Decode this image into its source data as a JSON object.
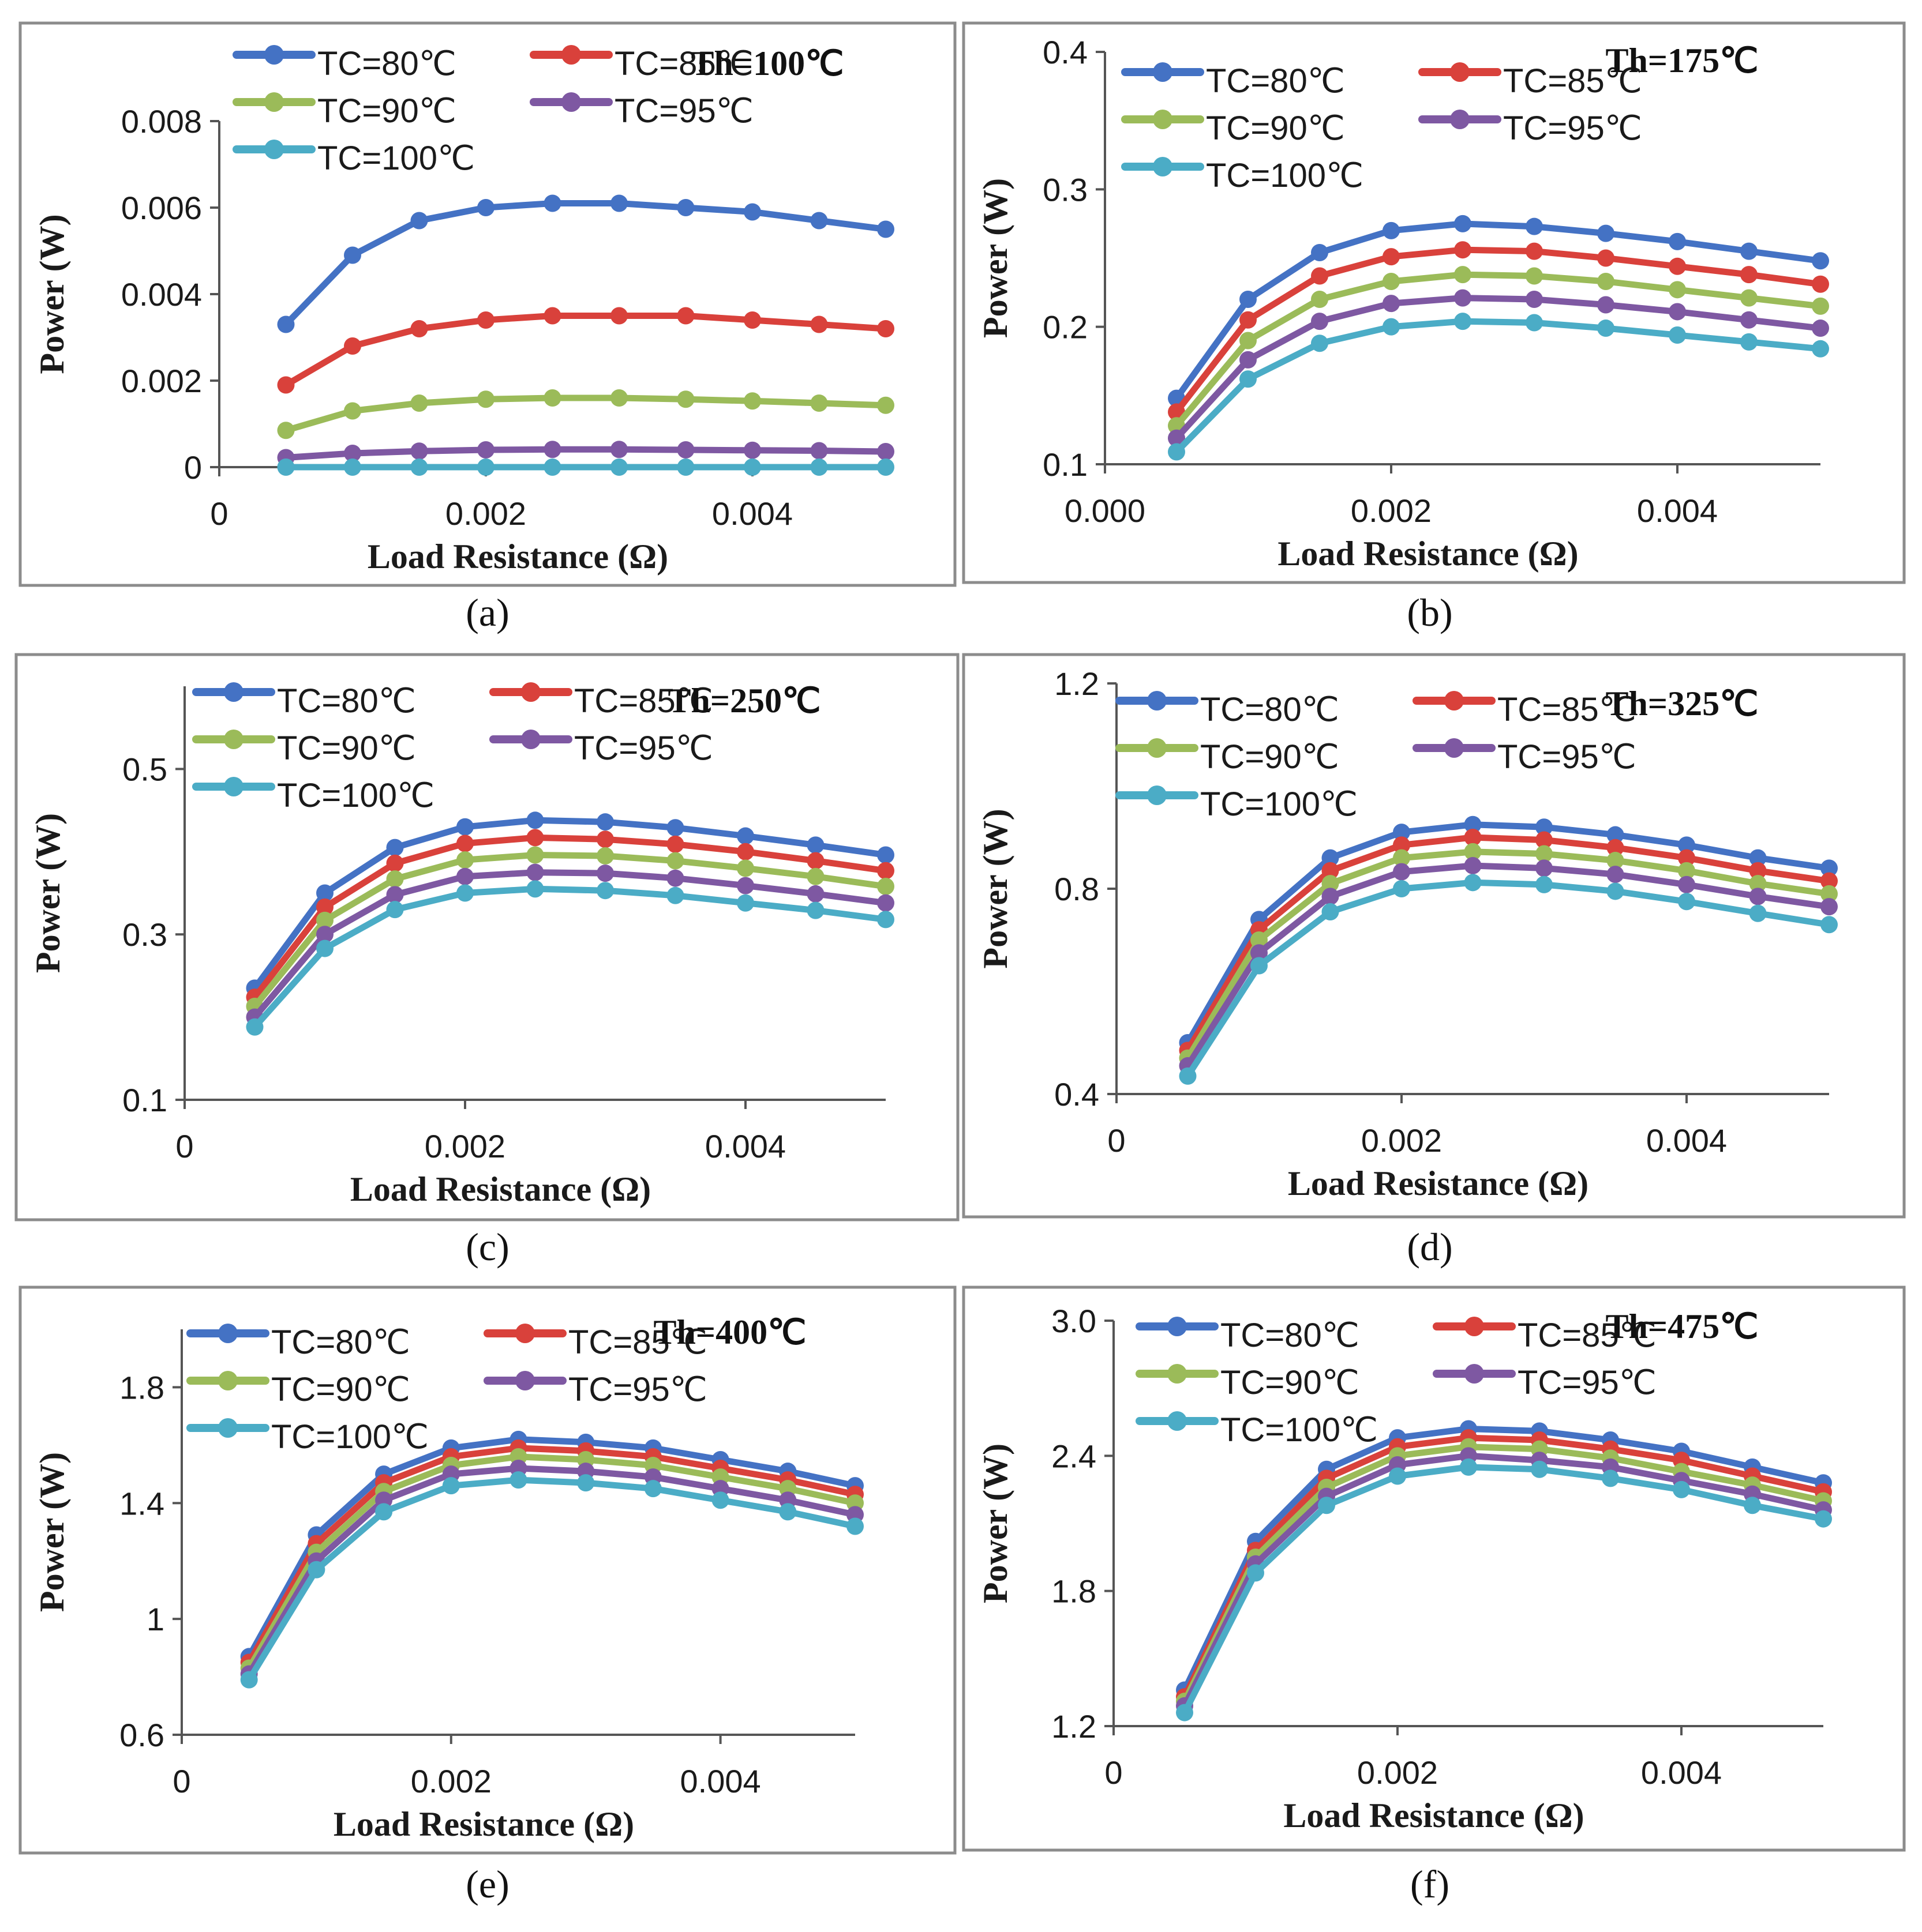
{
  "figure": {
    "series_names": [
      "TC=80℃",
      "TC=85℃",
      "TC=90℃",
      "TC=95℃",
      "TC=100℃"
    ],
    "series_colors": [
      "#4472C4",
      "#D9413B",
      "#9BBB59",
      "#7E58A2",
      "#4BACC6"
    ],
    "xlabel": "Load Resistance (Ω)",
    "ylabel": "Power (W)",
    "x_values": [
      0.0005,
      0.001,
      0.0015,
      0.002,
      0.0025,
      0.003,
      0.0035,
      0.004,
      0.0045,
      0.005
    ]
  },
  "chart_data": [
    {
      "type": "line",
      "caption": "(a)",
      "th_label": "Th=100℃",
      "xlim": [
        0,
        0.005
      ],
      "ylim": [
        0,
        0.008
      ],
      "x_ticks": [
        "0",
        "0.002",
        "0.004"
      ],
      "x_tick_values": [
        0,
        0.002,
        0.004
      ],
      "y_ticks": [
        "0",
        "0.002",
        "0.004",
        "0.006",
        "0.008"
      ],
      "y_tick_values": [
        0,
        0.002,
        0.004,
        0.006,
        0.008
      ],
      "series": [
        {
          "name": "TC=80℃",
          "values": [
            0.0033,
            0.0049,
            0.0057,
            0.006,
            0.0061,
            0.0061,
            0.006,
            0.0059,
            0.0057,
            0.0055
          ]
        },
        {
          "name": "TC=85℃",
          "values": [
            0.0019,
            0.0028,
            0.0032,
            0.0034,
            0.0035,
            0.0035,
            0.0035,
            0.0034,
            0.0033,
            0.0032
          ]
        },
        {
          "name": "TC=90℃",
          "values": [
            0.00085,
            0.0013,
            0.00148,
            0.00157,
            0.0016,
            0.0016,
            0.00157,
            0.00153,
            0.00148,
            0.00143
          ]
        },
        {
          "name": "TC=95℃",
          "values": [
            0.00022,
            0.00032,
            0.00037,
            0.0004,
            0.00041,
            0.00041,
            0.0004,
            0.00039,
            0.00038,
            0.00036
          ]
        },
        {
          "name": "TC=100℃",
          "values": [
            0,
            0,
            0,
            0,
            0,
            0,
            0,
            0,
            0,
            0
          ]
        }
      ]
    },
    {
      "type": "line",
      "caption": "(b)",
      "th_label": "Th=175℃",
      "xlim": [
        0,
        0.005
      ],
      "ylim": [
        0.1,
        0.4
      ],
      "x_ticks": [
        "0.000",
        "0.002",
        "0.004"
      ],
      "x_tick_values": [
        0,
        0.002,
        0.004
      ],
      "y_ticks": [
        "0.1",
        "0.2",
        "0.3",
        "0.4"
      ],
      "y_tick_values": [
        0.1,
        0.2,
        0.3,
        0.4
      ],
      "series": [
        {
          "name": "TC=80℃",
          "values": [
            0.148,
            0.22,
            0.254,
            0.27,
            0.275,
            0.273,
            0.268,
            0.262,
            0.255,
            0.248
          ]
        },
        {
          "name": "TC=85℃",
          "values": [
            0.138,
            0.205,
            0.237,
            0.251,
            0.256,
            0.255,
            0.25,
            0.244,
            0.238,
            0.231
          ]
        },
        {
          "name": "TC=90℃",
          "values": [
            0.128,
            0.19,
            0.22,
            0.233,
            0.238,
            0.237,
            0.233,
            0.227,
            0.221,
            0.215
          ]
        },
        {
          "name": "TC=95℃",
          "values": [
            0.119,
            0.176,
            0.204,
            0.217,
            0.221,
            0.22,
            0.216,
            0.211,
            0.205,
            0.199
          ]
        },
        {
          "name": "TC=100℃",
          "values": [
            0.109,
            0.162,
            0.188,
            0.2,
            0.204,
            0.203,
            0.199,
            0.194,
            0.189,
            0.184
          ]
        }
      ]
    },
    {
      "type": "line",
      "caption": "(c)",
      "th_label": "Th=250℃",
      "xlim": [
        0,
        0.005
      ],
      "ylim": [
        0.1,
        0.6
      ],
      "x_ticks": [
        "0",
        "0.002",
        "0.004"
      ],
      "x_tick_values": [
        0,
        0.002,
        0.004
      ],
      "y_ticks": [
        "0.1",
        "0.3",
        "0.5"
      ],
      "y_tick_values": [
        0.1,
        0.3,
        0.5
      ],
      "series": [
        {
          "name": "TC=80℃",
          "values": [
            0.235,
            0.35,
            0.405,
            0.43,
            0.438,
            0.436,
            0.429,
            0.419,
            0.408,
            0.396
          ]
        },
        {
          "name": "TC=85℃",
          "values": [
            0.224,
            0.333,
            0.386,
            0.41,
            0.417,
            0.415,
            0.409,
            0.4,
            0.389,
            0.377
          ]
        },
        {
          "name": "TC=90℃",
          "values": [
            0.213,
            0.317,
            0.367,
            0.39,
            0.396,
            0.395,
            0.389,
            0.38,
            0.37,
            0.358
          ]
        },
        {
          "name": "TC=95℃",
          "values": [
            0.2,
            0.3,
            0.348,
            0.37,
            0.375,
            0.374,
            0.368,
            0.359,
            0.349,
            0.338
          ]
        },
        {
          "name": "TC=100℃",
          "values": [
            0.188,
            0.283,
            0.33,
            0.35,
            0.355,
            0.353,
            0.347,
            0.338,
            0.329,
            0.318
          ]
        }
      ]
    },
    {
      "type": "line",
      "caption": "(d)",
      "th_label": "Th=325℃",
      "xlim": [
        0,
        0.005
      ],
      "ylim": [
        0.4,
        1.2
      ],
      "x_ticks": [
        "0",
        "0.002",
        "0.004"
      ],
      "x_tick_values": [
        0,
        0.002,
        0.004
      ],
      "y_ticks": [
        "0.4",
        "0.8",
        "1.2"
      ],
      "y_tick_values": [
        0.4,
        0.8,
        1.2
      ],
      "series": [
        {
          "name": "TC=80℃",
          "values": [
            0.5,
            0.74,
            0.86,
            0.91,
            0.925,
            0.92,
            0.905,
            0.885,
            0.86,
            0.84
          ]
        },
        {
          "name": "TC=85℃",
          "values": [
            0.485,
            0.72,
            0.835,
            0.885,
            0.9,
            0.895,
            0.88,
            0.86,
            0.835,
            0.815
          ]
        },
        {
          "name": "TC=90℃",
          "values": [
            0.47,
            0.7,
            0.81,
            0.86,
            0.872,
            0.868,
            0.855,
            0.835,
            0.81,
            0.79
          ]
        },
        {
          "name": "TC=95℃",
          "values": [
            0.455,
            0.675,
            0.785,
            0.833,
            0.845,
            0.84,
            0.828,
            0.808,
            0.785,
            0.765
          ]
        },
        {
          "name": "TC=100℃",
          "values": [
            0.435,
            0.65,
            0.755,
            0.8,
            0.812,
            0.808,
            0.795,
            0.775,
            0.752,
            0.73
          ]
        }
      ]
    },
    {
      "type": "line",
      "caption": "(e)",
      "th_label": "Th=400℃",
      "xlim": [
        0,
        0.005
      ],
      "ylim": [
        0.6,
        2.0
      ],
      "x_ticks": [
        "0",
        "0.002",
        "0.004"
      ],
      "x_tick_values": [
        0,
        0.002,
        0.004
      ],
      "y_ticks": [
        "0.6",
        "1",
        "1.4",
        "1.8"
      ],
      "y_tick_values": [
        0.6,
        1.0,
        1.4,
        1.8
      ],
      "series": [
        {
          "name": "TC=80℃",
          "values": [
            0.87,
            1.29,
            1.5,
            1.59,
            1.62,
            1.61,
            1.59,
            1.55,
            1.51,
            1.46
          ]
        },
        {
          "name": "TC=85℃",
          "values": [
            0.85,
            1.26,
            1.47,
            1.56,
            1.59,
            1.58,
            1.56,
            1.52,
            1.48,
            1.43
          ]
        },
        {
          "name": "TC=90℃",
          "values": [
            0.83,
            1.23,
            1.44,
            1.53,
            1.56,
            1.55,
            1.53,
            1.49,
            1.45,
            1.4
          ]
        },
        {
          "name": "TC=95℃",
          "values": [
            0.81,
            1.2,
            1.41,
            1.5,
            1.52,
            1.51,
            1.49,
            1.45,
            1.41,
            1.36
          ]
        },
        {
          "name": "TC=100℃",
          "values": [
            0.79,
            1.17,
            1.37,
            1.46,
            1.48,
            1.47,
            1.45,
            1.41,
            1.37,
            1.32
          ]
        }
      ]
    },
    {
      "type": "line",
      "caption": "(f)",
      "th_label": "Th=475℃",
      "xlim": [
        0,
        0.005
      ],
      "ylim": [
        1.2,
        3.0
      ],
      "x_ticks": [
        "0",
        "0.002",
        "0.004"
      ],
      "x_tick_values": [
        0,
        0.002,
        0.004
      ],
      "y_ticks": [
        "1.2",
        "1.8",
        "2.4",
        "3.0"
      ],
      "y_tick_values": [
        1.2,
        1.8,
        2.4,
        3.0
      ],
      "series": [
        {
          "name": "TC=80℃",
          "values": [
            1.36,
            2.02,
            2.34,
            2.48,
            2.52,
            2.51,
            2.47,
            2.42,
            2.35,
            2.28
          ]
        },
        {
          "name": "TC=85℃",
          "values": [
            1.33,
            1.98,
            2.3,
            2.44,
            2.48,
            2.47,
            2.43,
            2.38,
            2.31,
            2.24
          ]
        },
        {
          "name": "TC=90℃",
          "values": [
            1.31,
            1.95,
            2.26,
            2.4,
            2.44,
            2.43,
            2.39,
            2.33,
            2.27,
            2.2
          ]
        },
        {
          "name": "TC=95℃",
          "values": [
            1.29,
            1.92,
            2.22,
            2.36,
            2.4,
            2.38,
            2.35,
            2.29,
            2.23,
            2.16
          ]
        },
        {
          "name": "TC=100℃",
          "values": [
            1.26,
            1.88,
            2.18,
            2.31,
            2.35,
            2.34,
            2.3,
            2.25,
            2.18,
            2.12
          ]
        }
      ]
    }
  ]
}
